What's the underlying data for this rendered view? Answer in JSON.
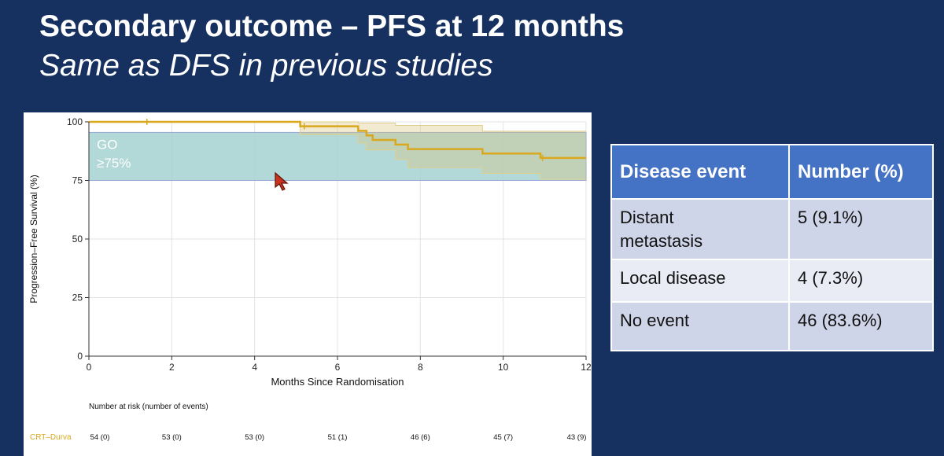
{
  "slide": {
    "title": "Secondary outcome – PFS at 12 months",
    "subtitle": "Same as DFS in previous studies"
  },
  "chart_data": {
    "type": "line",
    "title": "",
    "xlabel": "Months Since Randomisation",
    "ylabel": "Progression–Free Survival (%)",
    "xlim": [
      0,
      12
    ],
    "ylim": [
      0,
      100
    ],
    "x_ticks": [
      0,
      2,
      4,
      6,
      8,
      10,
      12
    ],
    "y_ticks": [
      0,
      25,
      50,
      75,
      100
    ],
    "grid": true,
    "series": [
      {
        "name": "CRT–Durva",
        "color": "#d9a81e",
        "step": true,
        "points": [
          [
            0,
            100
          ],
          [
            5.1,
            100
          ],
          [
            5.1,
            98.1
          ],
          [
            6.5,
            98.1
          ],
          [
            6.5,
            96.2
          ],
          [
            6.7,
            96.2
          ],
          [
            6.7,
            94.2
          ],
          [
            6.85,
            94.2
          ],
          [
            6.85,
            92.3
          ],
          [
            7.4,
            92.3
          ],
          [
            7.4,
            90.3
          ],
          [
            7.7,
            90.3
          ],
          [
            7.7,
            88.4
          ],
          [
            9.5,
            88.4
          ],
          [
            9.5,
            86.5
          ],
          [
            10.9,
            86.5
          ],
          [
            10.9,
            84.6
          ],
          [
            12,
            84.6
          ]
        ],
        "ci_lower": [
          [
            0,
            100
          ],
          [
            5.1,
            100
          ],
          [
            5.1,
            94.5
          ],
          [
            6.5,
            94.5
          ],
          [
            6.5,
            91
          ],
          [
            6.7,
            91
          ],
          [
            6.7,
            88
          ],
          [
            7.4,
            88
          ],
          [
            7.4,
            84
          ],
          [
            7.7,
            84
          ],
          [
            7.7,
            80.5
          ],
          [
            9.5,
            80.5
          ],
          [
            9.5,
            78
          ],
          [
            10.9,
            78
          ],
          [
            10.9,
            75.5
          ],
          [
            12,
            75.5
          ]
        ],
        "ci_upper": [
          [
            0,
            100
          ],
          [
            6.5,
            100
          ],
          [
            6.5,
            99.5
          ],
          [
            7.4,
            99.5
          ],
          [
            7.4,
            98.5
          ],
          [
            9.5,
            98.5
          ],
          [
            9.5,
            96
          ],
          [
            12,
            96
          ]
        ]
      }
    ],
    "annotations": [
      {
        "text": "GO",
        "region_y": [
          75,
          95.5
        ]
      },
      {
        "text": "≥75%"
      }
    ],
    "go_region": {
      "ylim": [
        75,
        95.5
      ],
      "color": "#a6d1d1"
    },
    "risk_table": {
      "header": "Number at risk (number of events)",
      "label": "CRT–Durva",
      "times": [
        0,
        2,
        4,
        6,
        8,
        10,
        12
      ],
      "values": [
        "54 (0)",
        "53 (0)",
        "53 (0)",
        "51 (1)",
        "46 (6)",
        "45 (7)",
        "43 (9)"
      ]
    }
  },
  "events_table": {
    "headers": [
      "Disease event",
      "Number (%)"
    ],
    "rows": [
      [
        "Distant metastasis",
        "5 (9.1%)"
      ],
      [
        "Local disease",
        "4 (7.3%)"
      ],
      [
        "No event",
        "46 (83.6%)"
      ]
    ]
  },
  "colors": {
    "background": "#16305f",
    "table_header": "#4472c4",
    "table_row": "#cfd5e8",
    "table_row_alt": "#e9ecf4",
    "series": "#d9a81e"
  },
  "icons": {
    "cursor": "arrow-cursor-icon"
  }
}
